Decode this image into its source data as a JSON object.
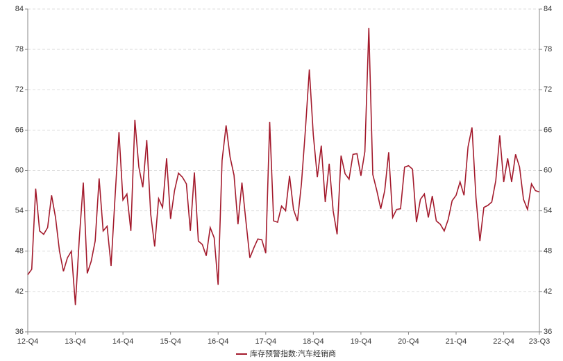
{
  "chart_data": {
    "type": "line",
    "categories": [
      "12-Q4",
      null,
      null,
      null,
      null,
      null,
      null,
      null,
      null,
      null,
      null,
      null,
      "13-Q4",
      null,
      null,
      null,
      null,
      null,
      null,
      null,
      null,
      null,
      null,
      null,
      "14-Q4",
      null,
      null,
      null,
      null,
      null,
      null,
      null,
      null,
      null,
      null,
      null,
      "15-Q4",
      null,
      null,
      null,
      null,
      null,
      null,
      null,
      null,
      null,
      null,
      null,
      "16-Q4",
      null,
      null,
      null,
      null,
      null,
      null,
      null,
      null,
      null,
      null,
      null,
      "17-Q4",
      null,
      null,
      null,
      null,
      null,
      null,
      null,
      null,
      null,
      null,
      null,
      "18-Q4",
      null,
      null,
      null,
      null,
      null,
      null,
      null,
      null,
      null,
      null,
      null,
      "19-Q4",
      null,
      null,
      null,
      null,
      null,
      null,
      null,
      null,
      null,
      null,
      null,
      "20-Q4",
      null,
      null,
      null,
      null,
      null,
      null,
      null,
      null,
      null,
      null,
      null,
      "21-Q4",
      null,
      null,
      null,
      null,
      null,
      null,
      null,
      null,
      null,
      null,
      null,
      "22-Q4",
      null,
      null,
      null,
      null,
      null,
      null,
      null,
      null,
      "23-Q3"
    ],
    "series": [
      {
        "name": "库存预警指数:汽车经销商",
        "color": "#a31a2c",
        "values": [
          44.5,
          45.3,
          57.3,
          51,
          50.5,
          51.5,
          56.3,
          53,
          48,
          45,
          47,
          48,
          40,
          50,
          58.2,
          44.7,
          46.5,
          49.5,
          58.8,
          51,
          51.7,
          45.8,
          56,
          65.7,
          55.6,
          56.5,
          51,
          67.5,
          60.5,
          57.5,
          64.5,
          53.5,
          48.7,
          55.8,
          54.5,
          61.8,
          52.8,
          57,
          59.6,
          59,
          58,
          51,
          59.7,
          49.5,
          49,
          47.3,
          51.5,
          50,
          43,
          61.5,
          66.7,
          62,
          59.3,
          52,
          58.2,
          52.5,
          47,
          48.5,
          49.8,
          49.7,
          47.7,
          67.2,
          52.5,
          52.3,
          54.7,
          54,
          59.2,
          54.2,
          52.5,
          58,
          66,
          75,
          65.3,
          59,
          63.7,
          55.3,
          61,
          54,
          50.5,
          62.2,
          59.5,
          58.7,
          62.4,
          62.5,
          59.2,
          62.8,
          81.2,
          59.4,
          57,
          54.3,
          57,
          62.7,
          53,
          54.2,
          54.3,
          60.5,
          60.7,
          60.2,
          52.3,
          55.7,
          56.5,
          53,
          56.2,
          52.5,
          52,
          51,
          52.7,
          55.5,
          56.3,
          58.3,
          56.3,
          63.5,
          66.4,
          56,
          49.5,
          54.5,
          54.8,
          55.3,
          58.5,
          65.2,
          58.3,
          61.8,
          58.3,
          62.4,
          60.5,
          55.7,
          54.2,
          58,
          57,
          56.8
        ]
      }
    ],
    "ylim": [
      36,
      84
    ],
    "yticks": [
      36,
      42,
      48,
      54,
      60,
      66,
      72,
      78,
      84
    ],
    "grid": true
  }
}
